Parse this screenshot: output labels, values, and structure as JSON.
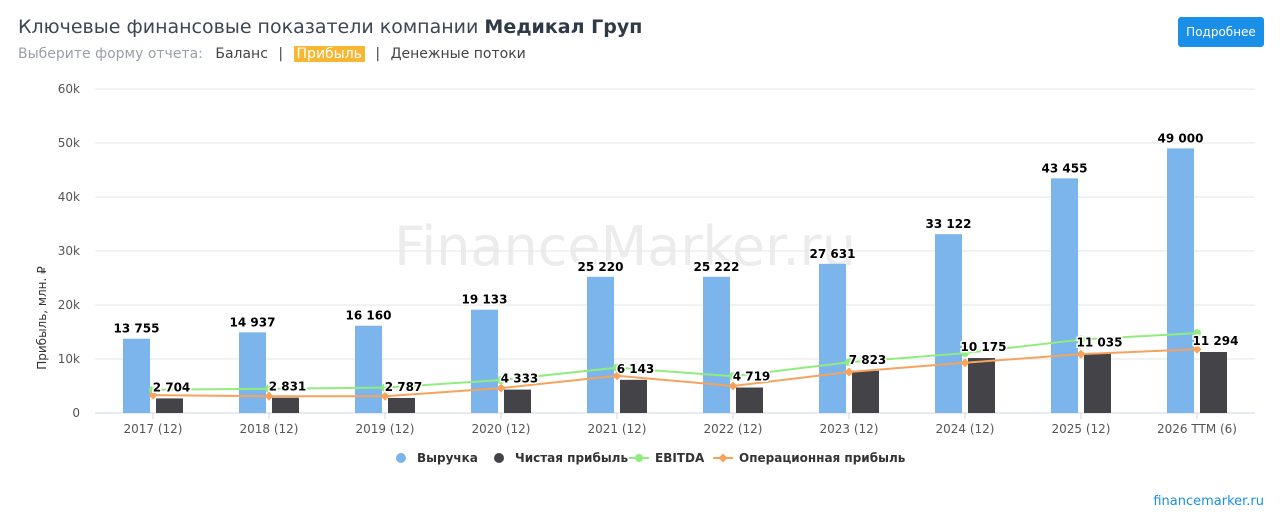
{
  "header": {
    "title_prefix": "Ключевые финансовые показатели компании",
    "company": "Медикал Груп",
    "more_button": "Подробнее"
  },
  "report_form": {
    "label": "Выберите форму отчета:",
    "options": [
      "Баланс",
      "Прибыль",
      "Денежные потоки"
    ],
    "separator": "|",
    "active": "Прибыль"
  },
  "watermark": "FinanceMarker.ru",
  "source_link": "financemarker.ru",
  "chart_data": {
    "type": "bar",
    "ylabel": "Прибыль, млн. ₽",
    "ylim": [
      0,
      60000
    ],
    "yticks": [
      0,
      10000,
      20000,
      30000,
      40000,
      50000,
      60000
    ],
    "ytick_labels": [
      "0",
      "10k",
      "20k",
      "30k",
      "40k",
      "50k",
      "60k"
    ],
    "grid": true,
    "legend_position": "bottom",
    "categories": [
      "2017 (12)",
      "2018 (12)",
      "2019 (12)",
      "2020 (12)",
      "2021 (12)",
      "2022 (12)",
      "2023 (12)",
      "2024 (12)",
      "2025 (12)",
      "2026 TTM (6)"
    ],
    "series": [
      {
        "name": "Выручка",
        "kind": "bar",
        "color": "#7cb5ec",
        "values": [
          13755,
          14937,
          16160,
          19133,
          25220,
          25222,
          27631,
          33122,
          43455,
          49000
        ],
        "labels": [
          "13 755",
          "14 937",
          "16 160",
          "19 133",
          "25 220",
          "25 222",
          "27 631",
          "33 122",
          "43 455",
          "49 000"
        ]
      },
      {
        "name": "Чистая прибыль",
        "kind": "bar",
        "color": "#434348",
        "values": [
          2704,
          2831,
          2787,
          4333,
          6143,
          4719,
          7823,
          10175,
          11035,
          11294
        ],
        "labels": [
          "2 704",
          "2 831",
          "2 787",
          "4 333",
          "6 143",
          "4 719",
          "7 823",
          "10 175",
          "11 035",
          "11 294"
        ]
      },
      {
        "name": "EBITDA",
        "kind": "line",
        "color": "#90ed7d",
        "marker": "circle",
        "values": [
          4300,
          4500,
          4700,
          6100,
          8400,
          6800,
          9400,
          11100,
          13600,
          14800
        ]
      },
      {
        "name": "Операционная прибыль",
        "kind": "line",
        "color": "#f7a35c",
        "marker": "diamond",
        "values": [
          3300,
          3100,
          3100,
          4600,
          6900,
          5000,
          7600,
          9300,
          10900,
          11800
        ]
      }
    ]
  }
}
